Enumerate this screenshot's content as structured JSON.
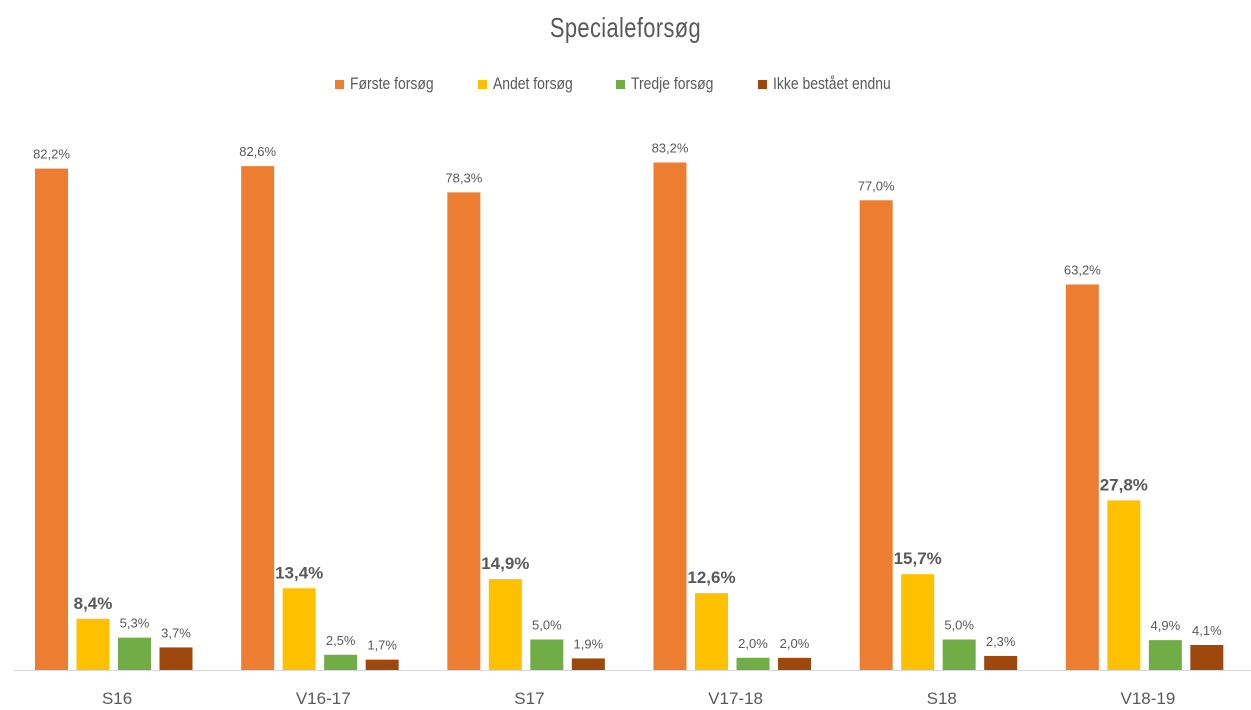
{
  "chart_data": {
    "type": "bar",
    "title": "Specialeforsøg",
    "categories": [
      "S16",
      "V16-17",
      "S17",
      "V17-18",
      "S18",
      "V18-19"
    ],
    "series": [
      {
        "name": "Første forsøg",
        "color": "#ED7D31",
        "values": [
          82.2,
          82.6,
          78.3,
          83.2,
          77.0,
          63.2
        ],
        "labels": [
          "82,2%",
          "82,6%",
          "78,3%",
          "83,2%",
          "77,0%",
          "63,2%"
        ]
      },
      {
        "name": "Andet forsøg",
        "color": "#FFC000",
        "values": [
          8.4,
          13.4,
          14.9,
          12.6,
          15.7,
          27.8
        ],
        "labels": [
          "8,4%",
          "13,4%",
          "14,9%",
          "12,6%",
          "15,7%",
          "27,8%"
        ]
      },
      {
        "name": "Tredje forsøg",
        "color": "#70AD47",
        "values": [
          5.3,
          2.5,
          5.0,
          2.0,
          5.0,
          4.9
        ],
        "labels": [
          "5,3%",
          "2,5%",
          "5,0%",
          "2,0%",
          "5,0%",
          "4,9%"
        ]
      },
      {
        "name": "Ikke bestået endnu",
        "color": "#9E480E",
        "values": [
          3.7,
          1.7,
          1.9,
          2.0,
          2.3,
          4.1
        ],
        "labels": [
          "3,7%",
          "1,7%",
          "1,9%",
          "2,0%",
          "2,3%",
          "4,1%"
        ]
      }
    ],
    "emphasized_series": "Andet forsøg",
    "ylim": [
      0,
      90
    ],
    "legend_position": "top",
    "grid": false
  }
}
